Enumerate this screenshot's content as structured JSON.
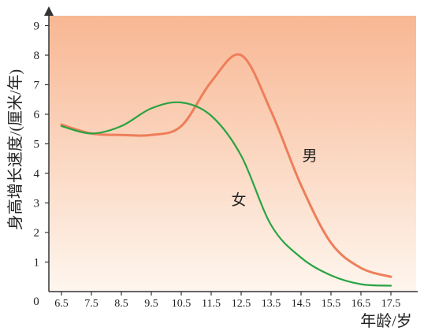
{
  "chart_data": {
    "type": "line",
    "title": "",
    "xlabel": "年龄/岁",
    "ylabel": "身高增长速度/(厘米/年)",
    "origin_label": "0",
    "categories": [
      "6.5",
      "7.5",
      "8.5",
      "9.5",
      "10.5",
      "11.5",
      "12.5",
      "13.5",
      "14.5",
      "15.5",
      "16.5",
      "17.5"
    ],
    "yticks": [
      "1",
      "2",
      "3",
      "4",
      "5",
      "6",
      "7",
      "8",
      "9"
    ],
    "ylim": [
      0,
      9.6
    ],
    "grid": false,
    "series": [
      {
        "name": "男",
        "color": "#ee7e5a",
        "values": [
          5.65,
          5.35,
          5.3,
          5.3,
          5.6,
          7.1,
          8.0,
          6.1,
          3.6,
          1.65,
          0.8,
          0.5
        ]
      },
      {
        "name": "女",
        "color": "#2aa343",
        "values": [
          5.6,
          5.35,
          5.6,
          6.2,
          6.4,
          5.95,
          4.6,
          2.25,
          1.15,
          0.55,
          0.25,
          0.2
        ]
      }
    ]
  },
  "colors": {
    "area_top": "#f8b793",
    "area_bottom": "#fef6ee",
    "axis": "#333333"
  }
}
